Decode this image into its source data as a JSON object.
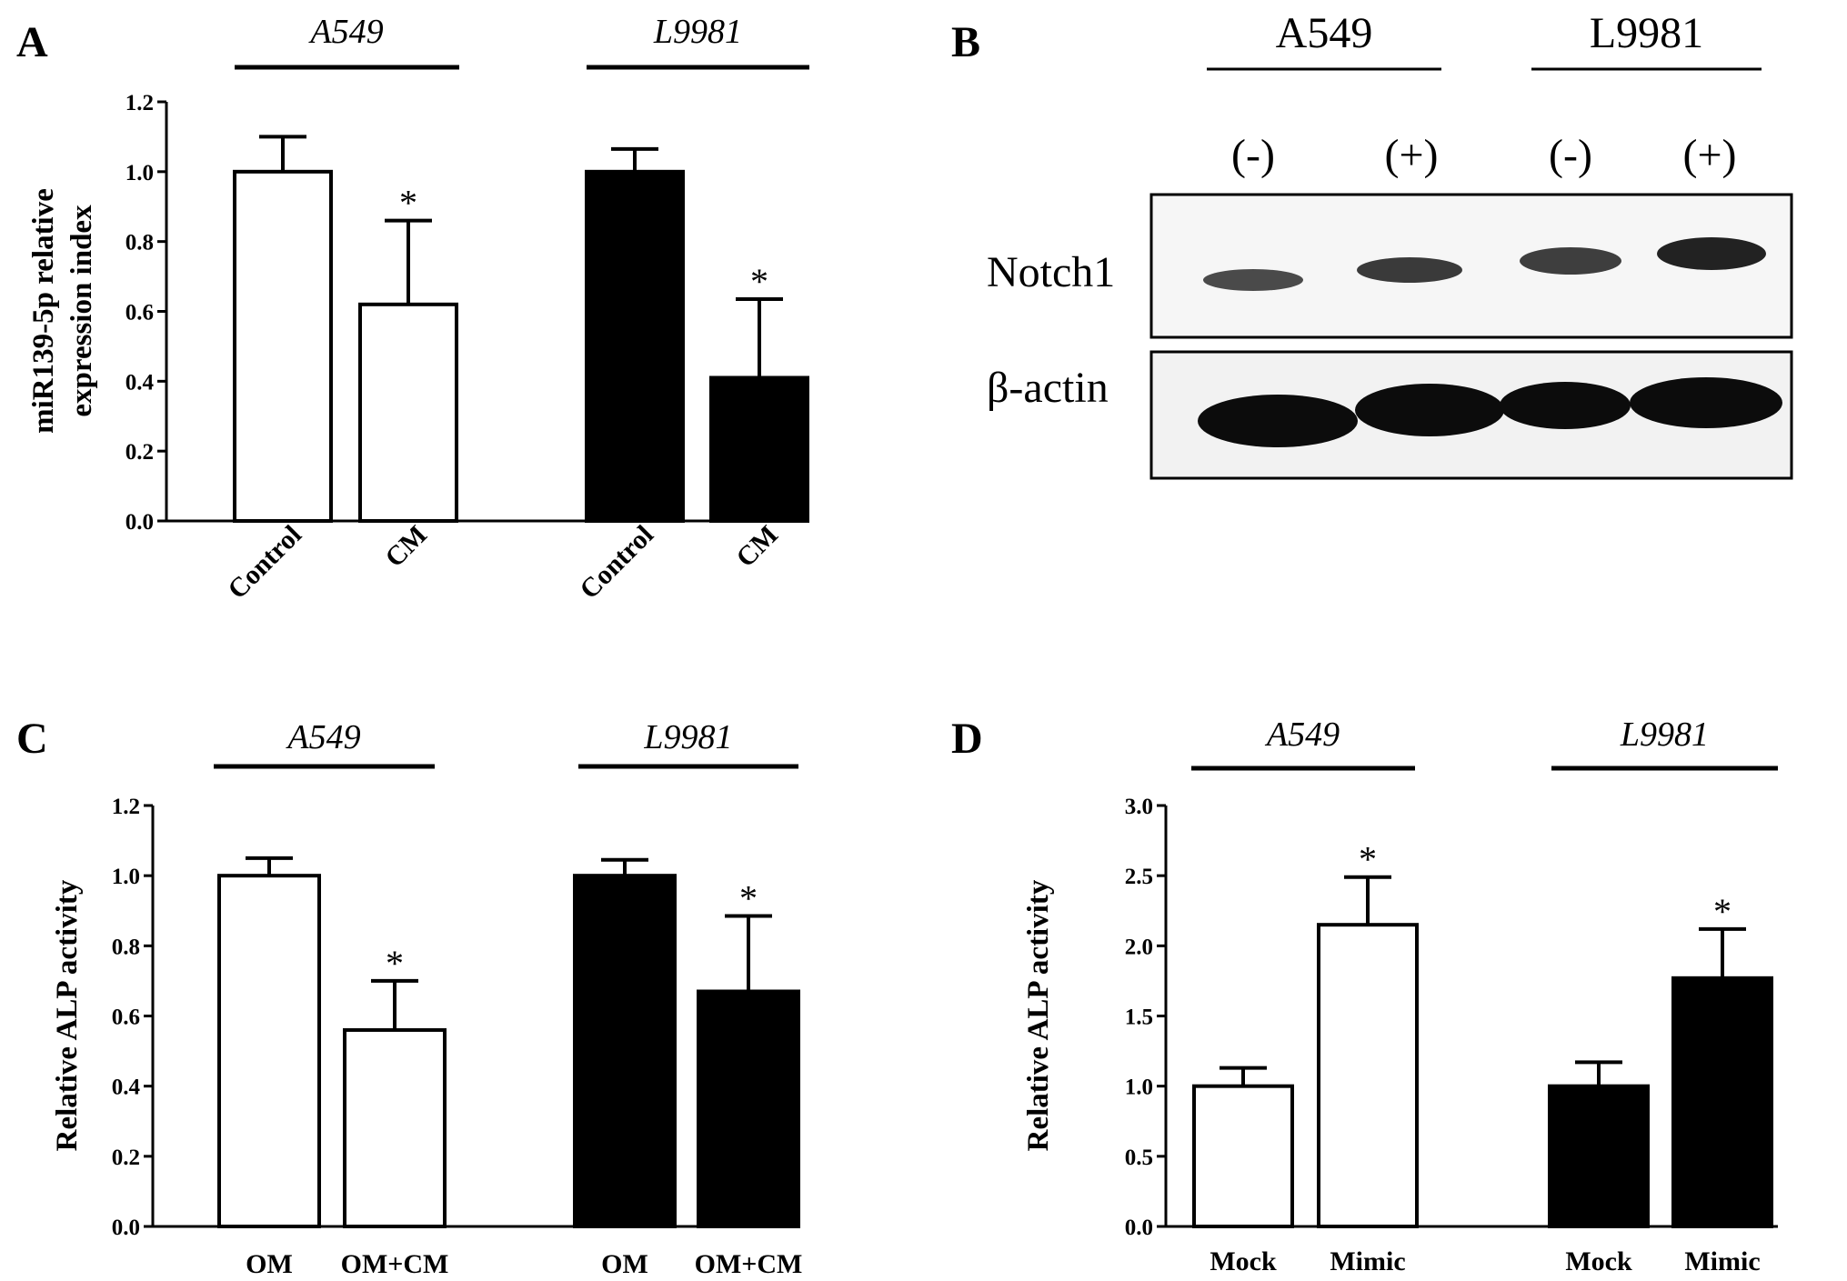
{
  "chart_data": [
    {
      "panel": "A",
      "type": "bar",
      "ylabel": "miR139-5p relative expression index",
      "ylabel_lines": [
        "miR139-5p relative",
        "expression index"
      ],
      "ylim": [
        0,
        1.2
      ],
      "yticks": [
        "0.0",
        "0.2",
        "0.4",
        "0.6",
        "0.8",
        "1.0",
        "1.2"
      ],
      "groups": [
        "A549",
        "L9981"
      ],
      "categories": [
        "Control",
        "CM",
        "Control",
        "CM"
      ],
      "values": [
        1.0,
        0.62,
        1.0,
        0.41
      ],
      "errors": [
        0.1,
        0.24,
        0.065,
        0.225
      ],
      "significance": [
        "",
        "*",
        "",
        "*"
      ],
      "fills": [
        "#ffffff",
        "#ffffff",
        "#000000",
        "#000000"
      ],
      "x_labels_rotated": true
    },
    {
      "panel": "C",
      "type": "bar",
      "ylabel": "Relative ALP activity",
      "ylim": [
        0,
        1.2
      ],
      "yticks": [
        "0.0",
        "0.2",
        "0.4",
        "0.6",
        "0.8",
        "1.0",
        "1.2"
      ],
      "groups": [
        "A549",
        "L9981"
      ],
      "categories": [
        "OM",
        "OM+CM",
        "OM",
        "OM+CM"
      ],
      "values": [
        1.0,
        0.56,
        1.0,
        0.67
      ],
      "errors": [
        0.05,
        0.14,
        0.045,
        0.215
      ],
      "significance": [
        "",
        "*",
        "",
        "*"
      ],
      "fills": [
        "#ffffff",
        "#ffffff",
        "#000000",
        "#000000"
      ],
      "x_labels_rotated": false
    },
    {
      "panel": "D",
      "type": "bar",
      "ylabel": "Relative ALP activity",
      "ylim": [
        0,
        3.0
      ],
      "yticks": [
        "0.0",
        "0.5",
        "1.0",
        "1.5",
        "2.0",
        "2.5",
        "3.0"
      ],
      "groups": [
        "A549",
        "L9981"
      ],
      "categories": [
        "Mock",
        "Mimic",
        "Mock",
        "Mimic"
      ],
      "values": [
        1.0,
        2.15,
        1.0,
        1.77
      ],
      "errors": [
        0.13,
        0.34,
        0.17,
        0.35
      ],
      "significance": [
        "",
        "*",
        "",
        "*"
      ],
      "fills": [
        "#ffffff",
        "#ffffff",
        "#000000",
        "#000000"
      ],
      "x_labels_rotated": false
    }
  ],
  "blot": {
    "panel": "B",
    "groups": [
      "A549",
      "L9981"
    ],
    "lanes": [
      "(-)",
      "(+)",
      "(-)",
      "(+)"
    ],
    "rows": [
      "Notch1",
      "β-actin"
    ]
  }
}
